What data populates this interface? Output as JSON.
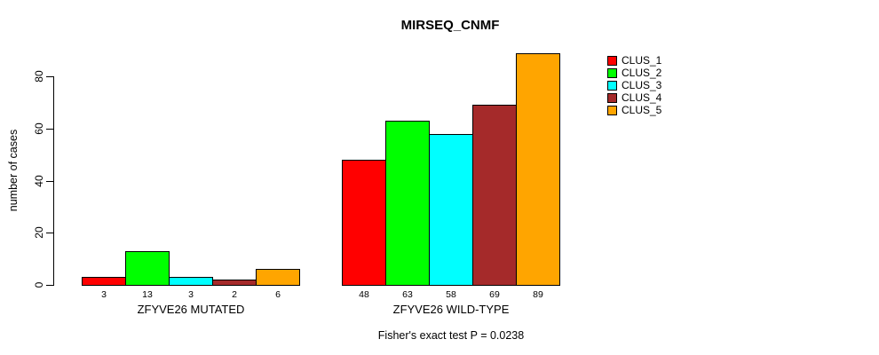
{
  "figure": {
    "background_color": "#ffffff",
    "text_color": "#000000"
  },
  "chart_data": {
    "type": "bar",
    "title": "MIRSEQ_CNMF",
    "xlabel": "",
    "ylabel": "number of cases",
    "ylim": [
      0,
      80
    ],
    "yticks": [
      0,
      20,
      40,
      60,
      80
    ],
    "grid": false,
    "legend_position": "right",
    "categories": [
      "ZFYVE26 MUTATED",
      "ZFYVE26 WILD-TYPE"
    ],
    "groups": [
      {
        "label": "ZFYVE26 MUTATED",
        "values": [
          3,
          13,
          3,
          2,
          6
        ]
      },
      {
        "label": "ZFYVE26 WILD-TYPE",
        "values": [
          48,
          63,
          58,
          69,
          89
        ]
      }
    ],
    "series": [
      {
        "name": "CLUS_1",
        "color": "#FF0000"
      },
      {
        "name": "CLUS_2",
        "color": "#00FF00"
      },
      {
        "name": "CLUS_3",
        "color": "#00FFFF"
      },
      {
        "name": "CLUS_4",
        "color": "#A52A2A"
      },
      {
        "name": "CLUS_5",
        "color": "#FFA500"
      }
    ],
    "bar_labels_shown": true,
    "annotation": "Fisher's exact test P = 0.0238"
  }
}
